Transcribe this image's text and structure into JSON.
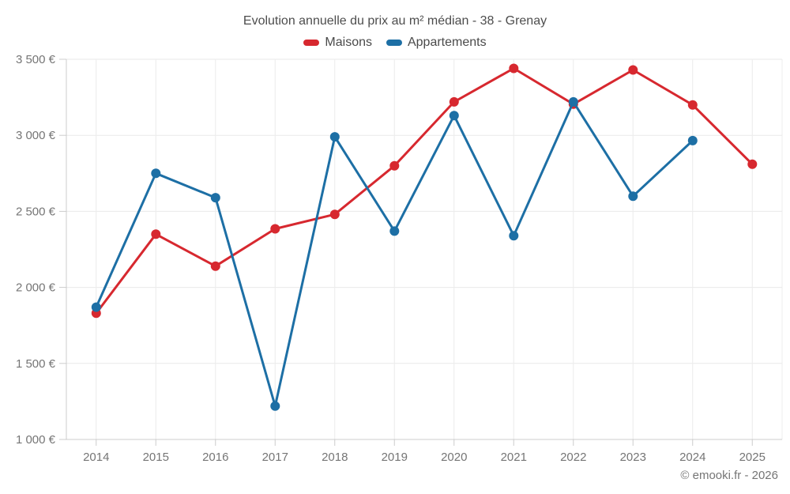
{
  "footer": {
    "attribution": "© emooki.fr - 2026"
  },
  "chart_data": {
    "type": "line",
    "title": "Evolution annuelle du prix au m² médian - 38 - Grenay",
    "categories": [
      "2014",
      "2015",
      "2016",
      "2017",
      "2018",
      "2019",
      "2020",
      "2021",
      "2022",
      "2023",
      "2024",
      "2025"
    ],
    "series": [
      {
        "name": "Maisons",
        "color": "#d7282f",
        "values": [
          1830,
          2350,
          2140,
          2385,
          2480,
          2800,
          3220,
          3440,
          3205,
          3430,
          3200,
          2810
        ]
      },
      {
        "name": "Appartements",
        "color": "#1d6fa5",
        "values": [
          1870,
          2750,
          2590,
          1220,
          2990,
          2370,
          3130,
          2340,
          3220,
          2600,
          2965,
          null
        ]
      }
    ],
    "xlabel": "",
    "ylabel": "",
    "ylim": [
      1000,
      3500
    ],
    "yticks": {
      "values": [
        1000,
        1500,
        2000,
        2500,
        3000,
        3500
      ],
      "labels": [
        "1 000 €",
        "1 500 €",
        "2 000 €",
        "2 500 €",
        "3 000 €",
        "3 500 €"
      ]
    },
    "grid": true,
    "legend_position": "top",
    "marker_radius": 6,
    "line_width": 3
  }
}
